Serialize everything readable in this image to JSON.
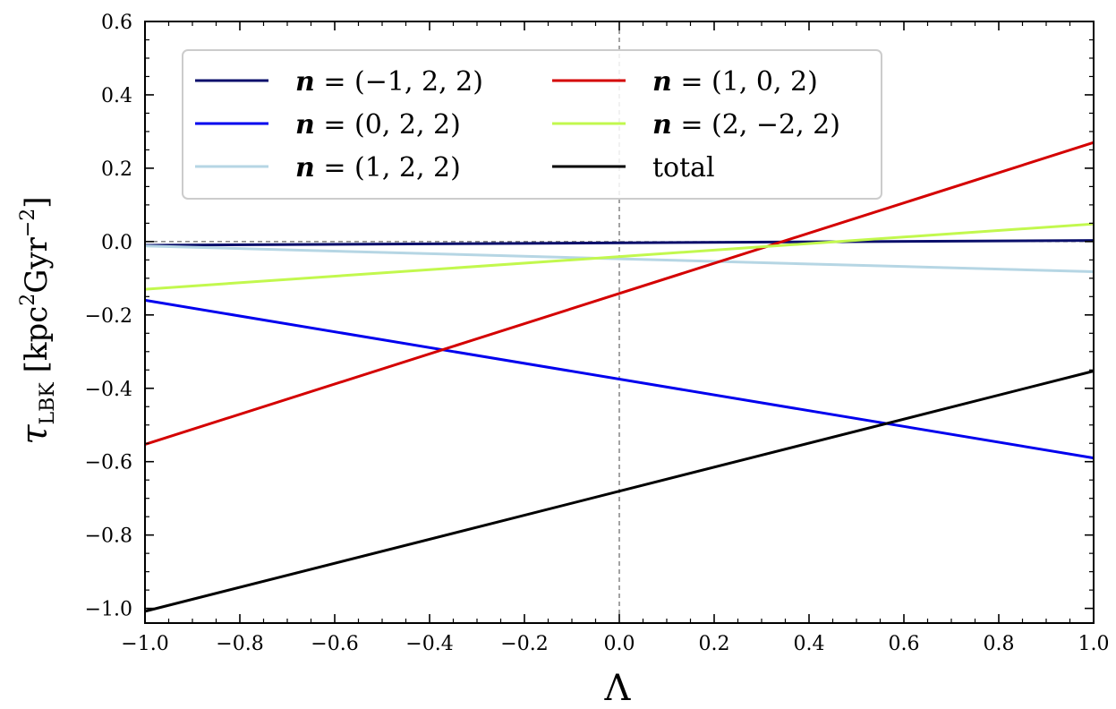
{
  "chart_data": {
    "type": "line",
    "xlabel": "Λ",
    "ylabel": {
      "symbol": "τ",
      "subscript": "LBK",
      "unit_open": " [kpc",
      "unit_sup1": "2",
      "unit_mid": "Gyr",
      "unit_sup2": "−2",
      "unit_close": "]"
    },
    "xlim": [
      -1.0,
      1.0
    ],
    "ylim": [
      -1.04,
      0.6
    ],
    "xticks": [
      "−1.0",
      "−0.8",
      "−0.6",
      "−0.4",
      "−0.2",
      "0.0",
      "0.2",
      "0.4",
      "0.6",
      "0.8",
      "1.0"
    ],
    "yticks": [
      "−1.0",
      "−0.8",
      "−0.6",
      "−0.4",
      "−0.2",
      "0.0",
      "0.2",
      "0.4",
      "0.6"
    ],
    "grid": false,
    "legend_position": "top-left",
    "legend_columns": 2,
    "reference_lines": {
      "horizontal_at_y": 0.0,
      "vertical_at_x": 0.0,
      "style": "dashed"
    },
    "x": [
      -1.0,
      1.0
    ],
    "series": [
      {
        "name": "(−1, 2, 2)",
        "color": "#0a0f6b",
        "values": [
          -0.01,
          0.003
        ]
      },
      {
        "name": "(0, 2, 2)",
        "color": "#0000ee",
        "values": [
          -0.16,
          -0.59
        ]
      },
      {
        "name": "(1, 2, 2)",
        "color": "#b6d6e4",
        "values": [
          -0.012,
          -0.082
        ]
      },
      {
        "name": "(1, 0, 2)",
        "color": "#d40000",
        "values": [
          -0.553,
          0.27
        ]
      },
      {
        "name": "(2, −2, 2)",
        "color": "#c2f84e",
        "values": [
          -0.13,
          0.048
        ]
      },
      {
        "name": "total",
        "color": "#000000",
        "values": [
          -1.008,
          -0.353
        ]
      }
    ],
    "legend_prefix_symbol": "n",
    "legend_prefix_eq": " = "
  }
}
